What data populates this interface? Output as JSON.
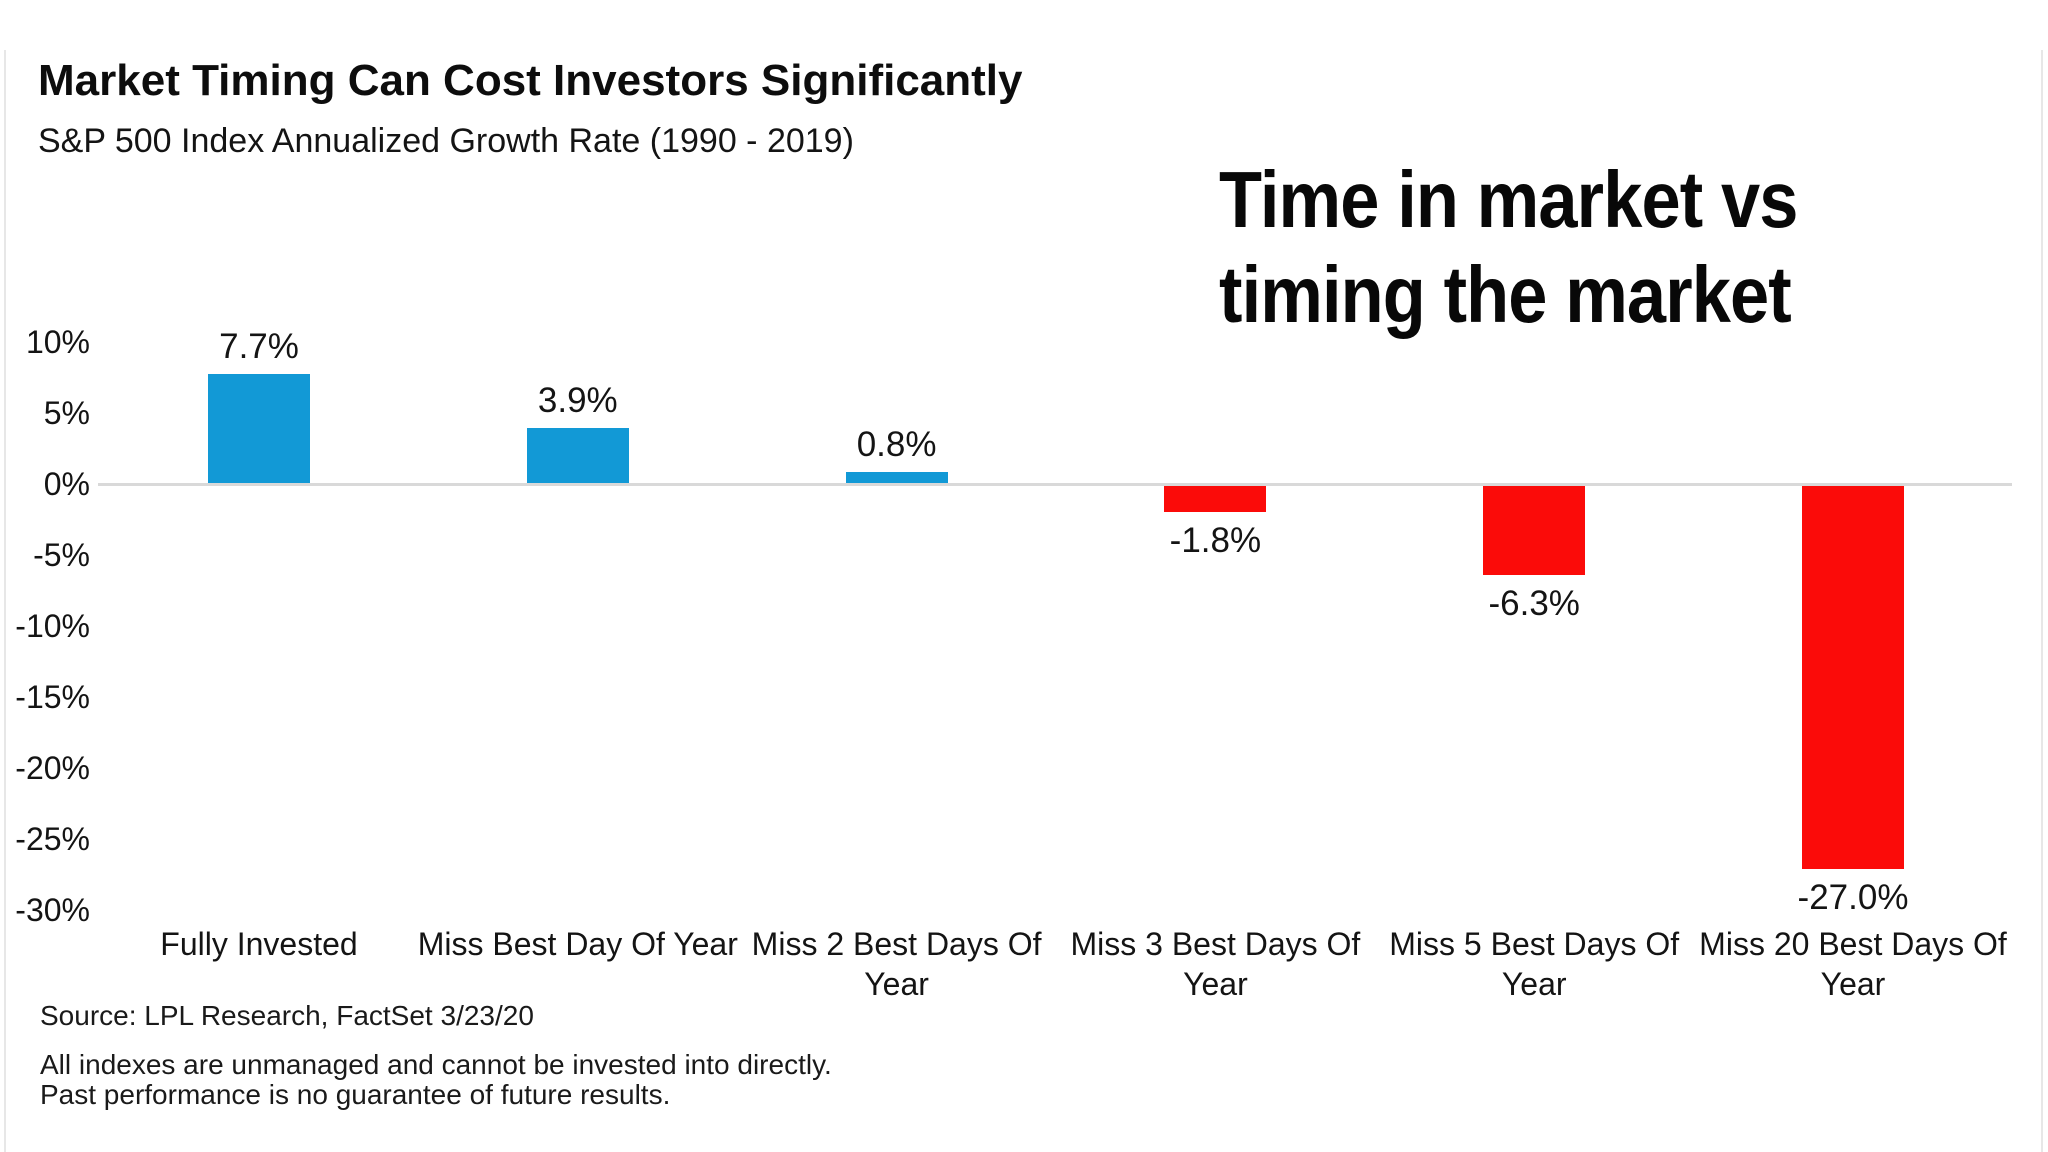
{
  "header": {
    "title": "Market Timing Can Cost Investors Significantly",
    "subtitle": "S&P 500 Index Annualized Growth Rate (1990 - 2019)"
  },
  "annotation": {
    "line1": "Time in market vs",
    "line2": "timing the market"
  },
  "chart_data": {
    "type": "bar",
    "title": "Market Timing Can Cost Investors Significantly",
    "subtitle": "S&P 500 Index Annualized Growth Rate (1990 - 2019)",
    "categories": [
      "Fully Invested",
      "Miss Best Day Of Year",
      "Miss 2 Best Days Of\nYear",
      "Miss 3 Best Days Of\nYear",
      "Miss 5 Best Days Of\nYear",
      "Miss 20 Best Days Of\nYear"
    ],
    "values": [
      7.7,
      3.9,
      0.8,
      -1.8,
      -6.3,
      -27.0
    ],
    "value_labels": [
      "7.7%",
      "3.9%",
      "0.8%",
      "-1.8%",
      "-6.3%",
      "-27.0%"
    ],
    "xlabel": "",
    "ylabel": "",
    "ylim": [
      -30,
      10
    ],
    "ytick_step": 5,
    "yticks": [
      "10%",
      "5%",
      "0%",
      "-5%",
      "-10%",
      "-15%",
      "-20%",
      "-25%",
      "-30%"
    ],
    "grid": "zero-baseline-only",
    "legend_position": "none",
    "positive_color": "#1299d6",
    "negative_color": "#fb0b09",
    "axis_line_color": "#d9d9d9"
  },
  "footer": {
    "source": "Source: LPL Research, FactSet 3/23/20",
    "disclaimer": "All indexes are unmanaged and cannot be invested into directly.\nPast performance is no guarantee of future results."
  }
}
